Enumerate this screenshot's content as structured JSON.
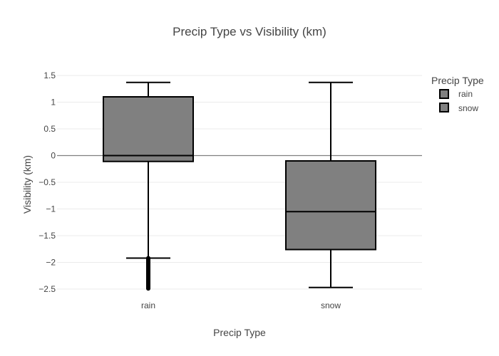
{
  "chart_data": {
    "type": "box",
    "title": "Precip Type vs Visibility (km)",
    "xlabel": "Precip Type",
    "ylabel": "Visibility (km)",
    "categories": [
      "rain",
      "snow"
    ],
    "ylim": [
      -2.55,
      1.55
    ],
    "yticks": [
      1.5,
      1,
      0.5,
      0,
      -0.5,
      -1,
      -1.5,
      -2,
      -2.5
    ],
    "ytick_labels": [
      "1.5",
      "1",
      "0.5",
      "0",
      "−0.5",
      "−1",
      "−1.5",
      "−2",
      "−2.5"
    ],
    "grid": true,
    "legend": {
      "title": "Precip Type",
      "placement": "top-right",
      "entries": [
        "rain",
        "snow"
      ]
    },
    "fill_color": "#808080",
    "line_color": "#000000",
    "series": [
      {
        "name": "rain",
        "whisker_low": -1.92,
        "q1": -0.11,
        "median": 0.0,
        "q3": 1.1,
        "whisker_high": 1.37,
        "outlier_range": [
          -2.49,
          -1.92
        ]
      },
      {
        "name": "snow",
        "whisker_low": -2.47,
        "q1": -1.76,
        "median": -1.05,
        "q3": -0.1,
        "whisker_high": 1.37
      }
    ]
  }
}
